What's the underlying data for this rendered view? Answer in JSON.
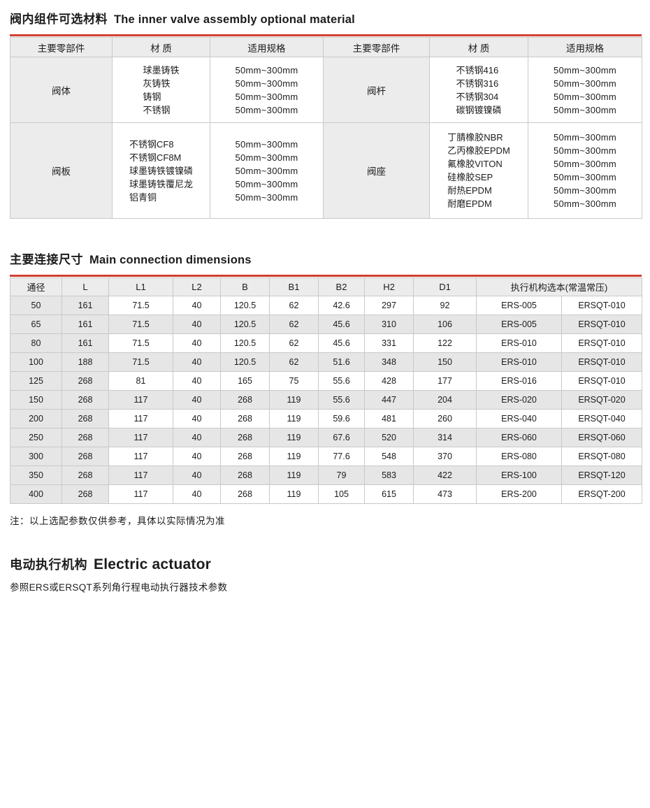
{
  "colors": {
    "accent_red": "#d23f30",
    "header_gray": "#ececec",
    "alt_row_gray": "#e6e6e6",
    "border_gray": "#c9c9c9"
  },
  "section_material": {
    "title_zh": "阀内组件可选材料",
    "title_en": "The inner valve assembly optional material",
    "table": {
      "headers": [
        "主要零部件",
        "材 质",
        "适用规格",
        "主要零部件",
        "材 质",
        "适用规格"
      ],
      "rows": [
        {
          "left": {
            "part": "阀体",
            "materials": [
              "球墨铸铁",
              "灰铸铁",
              "铸钢",
              "不锈钢"
            ],
            "specs": [
              "50mm~300mm",
              "50mm~300mm",
              "50mm~300mm",
              "50mm~300mm"
            ]
          },
          "right": {
            "part": "阀杆",
            "materials": [
              "不锈钢416",
              "不锈钢316",
              "不锈钢304",
              "碳钢镀镍磷"
            ],
            "specs": [
              "50mm~300mm",
              "50mm~300mm",
              "50mm~300mm",
              "50mm~300mm"
            ]
          }
        },
        {
          "left": {
            "part": "阀板",
            "materials": [
              "不锈钢CF8",
              "不锈钢CF8M",
              "球墨铸铁镀镍磷",
              "球墨铸铁覆尼龙",
              "铝青铜"
            ],
            "specs": [
              "50mm~300mm",
              "50mm~300mm",
              "50mm~300mm",
              "50mm~300mm",
              "50mm~300mm"
            ]
          },
          "right": {
            "part": "阀座",
            "materials": [
              "丁腈橡胶NBR",
              "乙丙橡胶EPDM",
              "氟橡胶VITON",
              "硅橡胶SEP",
              "耐热EPDM",
              "耐磨EPDM"
            ],
            "specs": [
              "50mm~300mm",
              "50mm~300mm",
              "50mm~300mm",
              "50mm~300mm",
              "50mm~300mm",
              "50mm~300mm"
            ]
          }
        }
      ]
    }
  },
  "section_dimensions": {
    "title_zh": "主要连接尺寸",
    "title_en": "Main connection dimensions",
    "table": {
      "headers": [
        "通径",
        "L",
        "L1",
        "L2",
        "B",
        "B1",
        "B2",
        "H2",
        "D1",
        "执行机构选本(常温常压)"
      ],
      "rows": [
        [
          "50",
          "161",
          "71.5",
          "40",
          "120.5",
          "62",
          "42.6",
          "297",
          "92",
          "ERS-005",
          "ERSQT-010"
        ],
        [
          "65",
          "161",
          "71.5",
          "40",
          "120.5",
          "62",
          "45.6",
          "310",
          "106",
          "ERS-005",
          "ERSQT-010"
        ],
        [
          "80",
          "161",
          "71.5",
          "40",
          "120.5",
          "62",
          "45.6",
          "331",
          "122",
          "ERS-010",
          "ERSQT-010"
        ],
        [
          "100",
          "188",
          "71.5",
          "40",
          "120.5",
          "62",
          "51.6",
          "348",
          "150",
          "ERS-010",
          "ERSQT-010"
        ],
        [
          "125",
          "268",
          "81",
          "40",
          "165",
          "75",
          "55.6",
          "428",
          "177",
          "ERS-016",
          "ERSQT-010"
        ],
        [
          "150",
          "268",
          "117",
          "40",
          "268",
          "119",
          "55.6",
          "447",
          "204",
          "ERS-020",
          "ERSQT-020"
        ],
        [
          "200",
          "268",
          "117",
          "40",
          "268",
          "119",
          "59.6",
          "481",
          "260",
          "ERS-040",
          "ERSQT-040"
        ],
        [
          "250",
          "268",
          "117",
          "40",
          "268",
          "119",
          "67.6",
          "520",
          "314",
          "ERS-060",
          "ERSQT-060"
        ],
        [
          "300",
          "268",
          "117",
          "40",
          "268",
          "119",
          "77.6",
          "548",
          "370",
          "ERS-080",
          "ERSQT-080"
        ],
        [
          "350",
          "268",
          "117",
          "40",
          "268",
          "119",
          "79",
          "583",
          "422",
          "ERS-100",
          "ERSQT-120"
        ],
        [
          "400",
          "268",
          "117",
          "40",
          "268",
          "119",
          "105",
          "615",
          "473",
          "ERS-200",
          "ERSQT-200"
        ]
      ]
    },
    "note": "注：以上选配参数仅供参考，具体以实际情况为准"
  },
  "section_actuator": {
    "title_zh": "电动执行机构",
    "title_en": "Electric actuator",
    "description": "参照ERS或ERSQT系列角行程电动执行器技术参数"
  }
}
